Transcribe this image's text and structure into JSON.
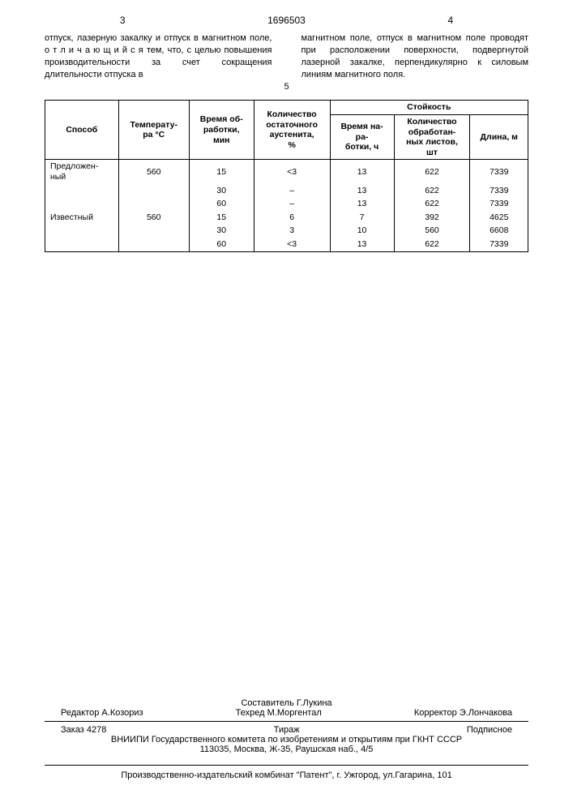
{
  "page_left_num": "3",
  "doc_number": "1696503",
  "page_right_num": "4",
  "line5": "5",
  "left_text": "отпуск, лазерную закалку и отпуск в магнитном поле, о т л и ч а ю щ и й с я  тем, что, с целью повышения производительности за счет сокращения длительности отпуска в",
  "right_text": "магнитном поле, отпуск в магнитном поле проводят при расположении поверхности, подвергнутой лазерной закалке, перпендикулярно к силовым линиям магнитного поля.",
  "table": {
    "headers": {
      "method": "Способ",
      "temp": "Температу-\nра °C",
      "time": "Время об-\nработки,\nмин",
      "austenite": "Количество\nостаточного\nаустенита,\n%",
      "durability": "Стойкость",
      "work_time": "Время на-\nра-\nботки, ч",
      "sheets": "Количество\nобработан-\nных листов,\nшт",
      "length": "Длина, м"
    },
    "rows": [
      {
        "method": "Предложен-\nный",
        "temp": "560",
        "time": "15",
        "aus": "<3",
        "wt": "13",
        "sh": "622",
        "len": "7339"
      },
      {
        "method": "",
        "temp": "",
        "time": "30",
        "aus": "–",
        "wt": "13",
        "sh": "622",
        "len": "7339"
      },
      {
        "method": "",
        "temp": "",
        "time": "60",
        "aus": "–",
        "wt": "13",
        "sh": "622",
        "len": "7339"
      },
      {
        "method": "Известный",
        "temp": "560",
        "time": "15",
        "aus": "6",
        "wt": "7",
        "sh": "392",
        "len": "4625"
      },
      {
        "method": "",
        "temp": "",
        "time": "30",
        "aus": "3",
        "wt": "10",
        "sh": "560",
        "len": "6608"
      },
      {
        "method": "",
        "temp": "",
        "time": "60",
        "aus": "<3",
        "wt": "13",
        "sh": "622",
        "len": "7339"
      }
    ]
  },
  "footer": {
    "compiler": "Составитель Г.Лукина",
    "editor_label": "Редактор",
    "editor": "А.Козориз",
    "techred_label": "Техред",
    "techred": "М.Моргентал",
    "corrector_label": "Корректор",
    "corrector": "Э.Лончакова",
    "order": "Заказ 4278",
    "tirazh": "Тираж",
    "podpisnoe": "Подписное",
    "vniipi": "ВНИИПИ Государственного комитета по изобретениям и открытиям при ГКНТ СССР",
    "address": "113035, Москва, Ж-35, Раушская наб., 4/5",
    "printer": "Производственно-издательский комбинат \"Патент\", г. Ужгород, ул.Гагарина, 101"
  }
}
